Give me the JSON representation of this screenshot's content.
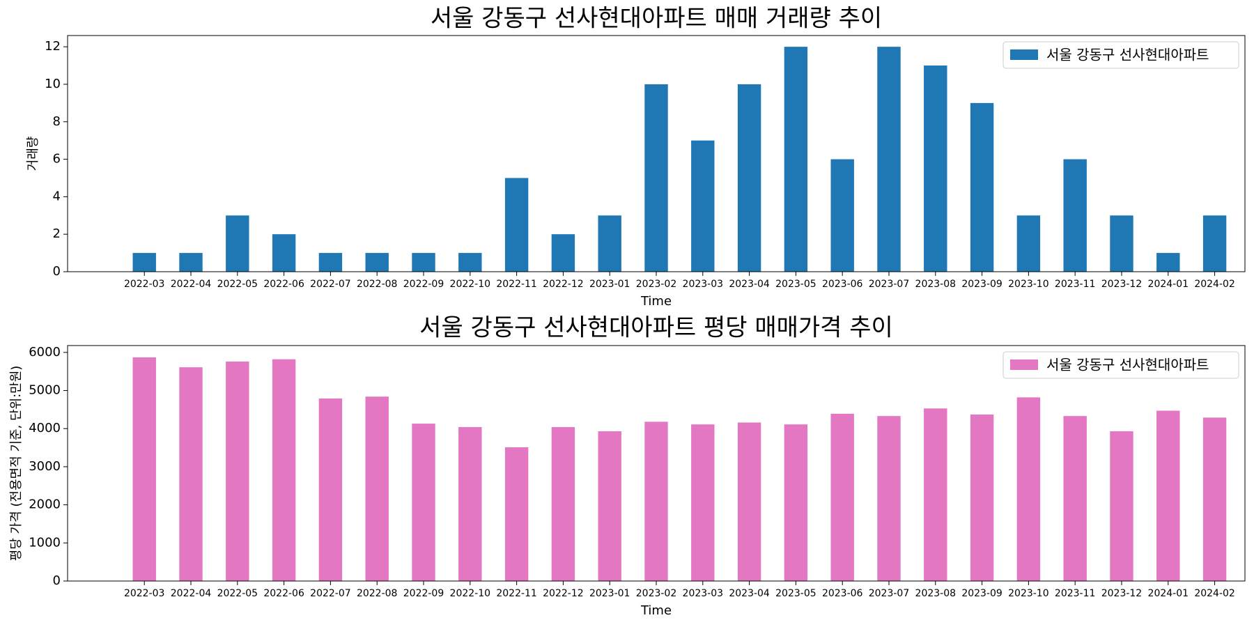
{
  "chart_data": [
    {
      "type": "bar",
      "title": "서울 강동구 선사현대아파트 매매 거래량 추이",
      "xlabel": "Time",
      "ylabel": "거래량",
      "ylim": [
        0,
        12.6
      ],
      "yticks": [
        0,
        2,
        4,
        6,
        8,
        10,
        12
      ],
      "legend_position": "upper-right",
      "color": "#1f77b4",
      "categories": [
        "2022-03",
        "2022-04",
        "2022-05",
        "2022-06",
        "2022-07",
        "2022-08",
        "2022-09",
        "2022-10",
        "2022-11",
        "2022-12",
        "2023-01",
        "2023-02",
        "2023-03",
        "2023-04",
        "2023-05",
        "2023-06",
        "2023-07",
        "2023-08",
        "2023-09",
        "2023-10",
        "2023-11",
        "2023-12",
        "2024-01",
        "2024-02"
      ],
      "series": [
        {
          "name": "서울 강동구 선사현대아파트",
          "values": [
            1,
            1,
            3,
            2,
            1,
            1,
            1,
            1,
            5,
            2,
            3,
            10,
            7,
            10,
            12,
            6,
            12,
            11,
            9,
            3,
            6,
            3,
            1,
            3
          ]
        }
      ]
    },
    {
      "type": "bar",
      "title": "서울 강동구 선사현대아파트 평당 매매가격 추이",
      "xlabel": "Time",
      "ylabel": "평당 가격 (전용면적 기준, 단위:만원)",
      "ylim": [
        0,
        6180
      ],
      "yticks": [
        0,
        1000,
        2000,
        3000,
        4000,
        5000,
        6000
      ],
      "legend_position": "upper-right",
      "color": "#e377c2",
      "categories": [
        "2022-03",
        "2022-04",
        "2022-05",
        "2022-06",
        "2022-07",
        "2022-08",
        "2022-09",
        "2022-10",
        "2022-11",
        "2022-12",
        "2023-01",
        "2023-02",
        "2023-03",
        "2023-04",
        "2023-05",
        "2023-06",
        "2023-07",
        "2023-08",
        "2023-09",
        "2023-10",
        "2023-11",
        "2023-12",
        "2024-01",
        "2024-02"
      ],
      "series": [
        {
          "name": "서울 강동구 선사현대아파트",
          "values": [
            5870,
            5610,
            5760,
            5820,
            4790,
            4840,
            4130,
            4040,
            3510,
            4040,
            3930,
            4180,
            4110,
            4160,
            4110,
            4390,
            4330,
            4530,
            4370,
            4820,
            4330,
            3930,
            4470,
            4290
          ]
        }
      ]
    }
  ]
}
